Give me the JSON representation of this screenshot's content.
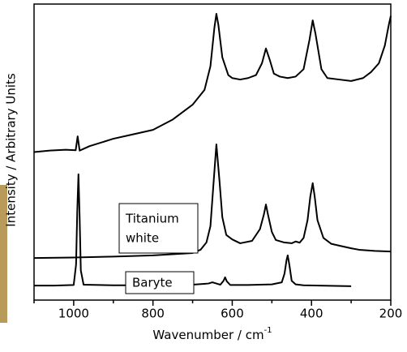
{
  "chart_data": {
    "type": "line",
    "x_label": "Wavenumber / cm",
    "x_label_superscript": "-1",
    "y_label": "Intensity / Arbitrary Units",
    "xlim": [
      1100,
      200
    ],
    "ylim": [
      0,
      100
    ],
    "xticks": [
      1000,
      800,
      600,
      400,
      200
    ],
    "xminor_ticks": [
      1100,
      900,
      700,
      500,
      300
    ],
    "series": [
      {
        "color": "#000000",
        "x": [
          1100,
          1060,
          1020,
          995,
          990,
          985,
          960,
          900,
          850,
          800,
          750,
          700,
          670,
          655,
          645,
          640,
          635,
          625,
          610,
          600,
          580,
          560,
          540,
          525,
          515,
          505,
          495,
          480,
          460,
          440,
          420,
          405,
          397,
          390,
          375,
          360,
          330,
          300,
          270,
          250,
          230,
          215,
          205,
          200
        ],
        "values": [
          50,
          50.5,
          50.8,
          50.6,
          55.3,
          50.5,
          52,
          54.5,
          56,
          57.5,
          61,
          66,
          71,
          79,
          92,
          96.7,
          93,
          82,
          76,
          75,
          74.5,
          75,
          76,
          80,
          85,
          81,
          76.5,
          75.5,
          75,
          75.5,
          78,
          88,
          94.5,
          90,
          78,
          75,
          74.5,
          74,
          75,
          77,
          80,
          86,
          93,
          96
        ]
      },
      {
        "color": "#000000",
        "x": [
          1100,
          1000,
          900,
          800,
          700,
          680,
          665,
          655,
          648,
          640,
          632,
          625,
          615,
          600,
          580,
          550,
          530,
          520,
          515,
          510,
          500,
          490,
          470,
          450,
          440,
          430,
          420,
          410,
          403,
          397,
          392,
          385,
          370,
          350,
          330,
          300,
          280,
          240,
          200
        ],
        "values": [
          14.2,
          14.4,
          14.7,
          15.1,
          15.9,
          17,
          19.5,
          25,
          38,
          52.6,
          40,
          28,
          22,
          20.5,
          19.2,
          20,
          24,
          29,
          32.3,
          29,
          23,
          20.3,
          19.5,
          19.2,
          19.8,
          19.4,
          21,
          27,
          35,
          39.5,
          35,
          27,
          21,
          19,
          18.4,
          17.5,
          17,
          16.6,
          16.4
        ]
      },
      {
        "color": "#000000",
        "x": [
          1100,
          1050,
          1000,
          994,
          991,
          988,
          985,
          982,
          975,
          900,
          800,
          700,
          660,
          650,
          640,
          630,
          622,
          618,
          614,
          605,
          560,
          500,
          475,
          468,
          463,
          460,
          456,
          450,
          440,
          420,
          380,
          340,
          300
        ],
        "values": [
          4.9,
          4.9,
          5.1,
          12,
          30,
          42.5,
          28,
          10,
          5.2,
          5,
          5,
          5.2,
          5.6,
          6,
          5.6,
          5.2,
          6.5,
          7.7,
          6.4,
          5.1,
          5.1,
          5.3,
          6,
          9,
          13.5,
          15.1,
          12,
          6.5,
          5.3,
          5,
          4.9,
          4.8,
          4.7
        ]
      }
    ],
    "annotations": [
      {
        "lines": [
          "Titanium",
          "white"
        ]
      },
      {
        "lines": [
          "Baryte"
        ]
      }
    ]
  }
}
